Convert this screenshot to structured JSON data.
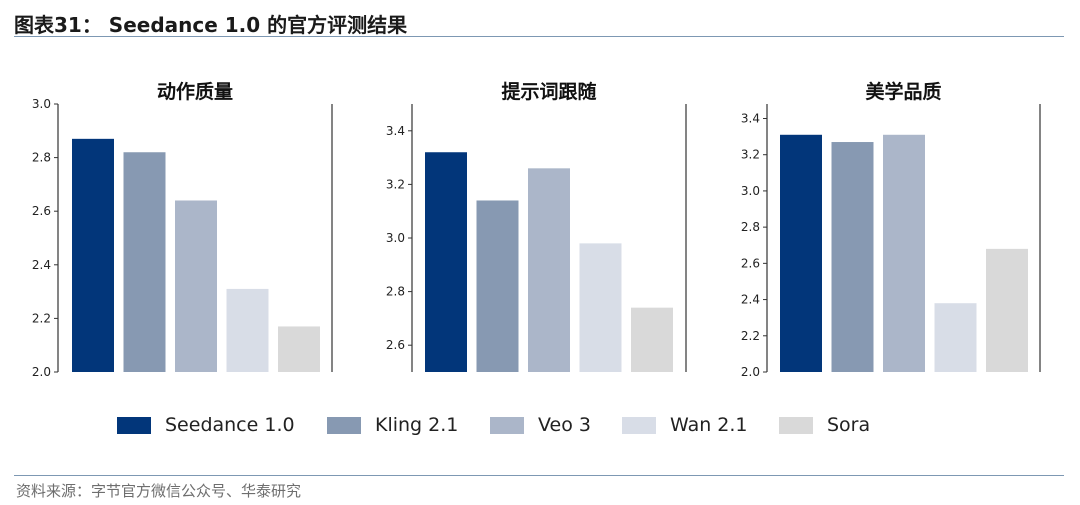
{
  "header": {
    "title": "图表31： Seedance 1.0 的官方评测结果"
  },
  "footer": {
    "source": "资料来源：字节官方微信公众号、华泰研究"
  },
  "colors": {
    "Seedance 1.0": "#02367a",
    "Kling 2.1": "#8799b2",
    "Veo 3": "#abb6c9",
    "Wan 2.1": "#d8dde7",
    "Sora": "#d9d9d9"
  },
  "legend": {
    "placement": "bottom",
    "items": [
      "Seedance 1.0",
      "Kling 2.1",
      "Veo 3",
      "Wan 2.1",
      "Sora"
    ]
  },
  "chart_data": [
    {
      "type": "bar",
      "title": "动作质量",
      "categories": [
        "Seedance 1.0",
        "Kling 2.1",
        "Veo 3",
        "Wan 2.1",
        "Sora"
      ],
      "values": [
        2.87,
        2.82,
        2.64,
        2.31,
        2.17
      ],
      "ylim": [
        2.0,
        3.0
      ],
      "yticks": [
        "2.0",
        "2.2",
        "2.4",
        "2.6",
        "2.8",
        "3.0"
      ],
      "grid": false
    },
    {
      "type": "bar",
      "title": "提示词跟随",
      "categories": [
        "Seedance 1.0",
        "Kling 2.1",
        "Veo 3",
        "Wan 2.1",
        "Sora"
      ],
      "values": [
        3.32,
        3.14,
        3.26,
        2.98,
        2.74
      ],
      "ylim": [
        2.5,
        3.5
      ],
      "yticks": [
        "2.6",
        "2.8",
        "3.0",
        "3.2",
        "3.4"
      ],
      "grid": false
    },
    {
      "type": "bar",
      "title": "美学品质",
      "categories": [
        "Seedance 1.0",
        "Kling 2.1",
        "Veo 3",
        "Wan 2.1",
        "Sora"
      ],
      "values": [
        3.31,
        3.27,
        3.31,
        2.38,
        2.68
      ],
      "ylim": [
        2.0,
        3.48
      ],
      "yticks": [
        "2.0",
        "2.2",
        "2.4",
        "2.6",
        "2.8",
        "3.0",
        "3.2",
        "3.4"
      ],
      "grid": false
    }
  ]
}
